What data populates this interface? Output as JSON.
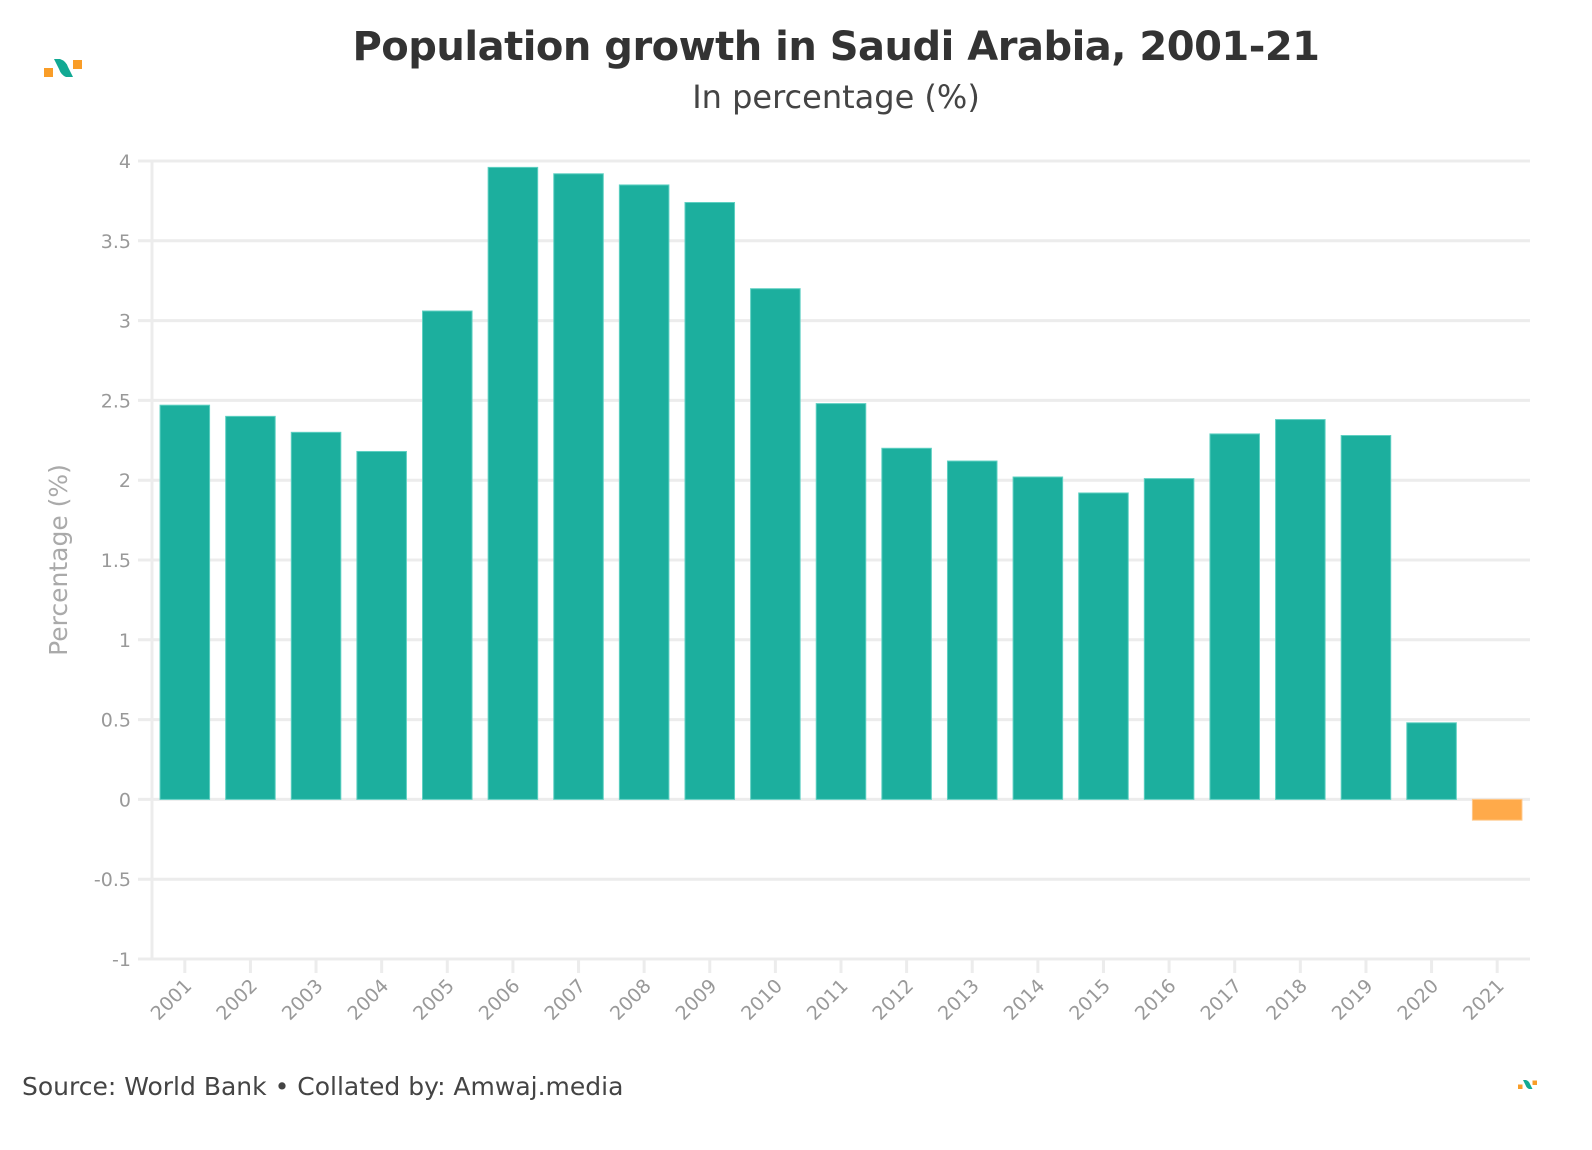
{
  "header": {
    "title": "Population growth in Saudi Arabia, 2001-21",
    "subtitle": "In percentage (%)"
  },
  "footer": {
    "source_text": "Source: World Bank • Collated by: Amwaj.media"
  },
  "logos": {
    "top_left": "amwaj-logo-icon",
    "bottom_right": "amwaj-logo-icon"
  },
  "colors": {
    "positive_bar": "#1CAF9E",
    "negative_bar": "#FFAA4A",
    "logo_teal": "#12A993",
    "logo_orange": "#F99D28",
    "gridline": "#ECECEC",
    "tick_text": "#999999"
  },
  "chart_data": {
    "type": "bar",
    "title": "Population growth in Saudi Arabia, 2001-21",
    "subtitle": "In percentage (%)",
    "xlabel": "",
    "ylabel": "Percentage (%)",
    "ylim": [
      -1,
      4
    ],
    "yticks": [
      -1,
      -0.5,
      0,
      0.5,
      1,
      1.5,
      2,
      2.5,
      3,
      3.5,
      4
    ],
    "ytick_labels": [
      "-1",
      "-0.5",
      "0",
      "0.5",
      "1",
      "1.5",
      "2",
      "2.5",
      "3",
      "3.5",
      "4"
    ],
    "grid": true,
    "legend": "none",
    "x_tick_rotation": "-45deg",
    "categories": [
      "2001",
      "2002",
      "2003",
      "2004",
      "2005",
      "2006",
      "2007",
      "2008",
      "2009",
      "2010",
      "2011",
      "2012",
      "2013",
      "2014",
      "2015",
      "2016",
      "2017",
      "2018",
      "2019",
      "2020",
      "2021"
    ],
    "values": [
      2.47,
      2.4,
      2.3,
      2.18,
      3.06,
      3.96,
      3.92,
      3.85,
      3.74,
      3.2,
      2.48,
      2.2,
      2.12,
      2.02,
      1.92,
      2.01,
      2.29,
      2.38,
      2.28,
      0.48,
      -0.13
    ]
  }
}
